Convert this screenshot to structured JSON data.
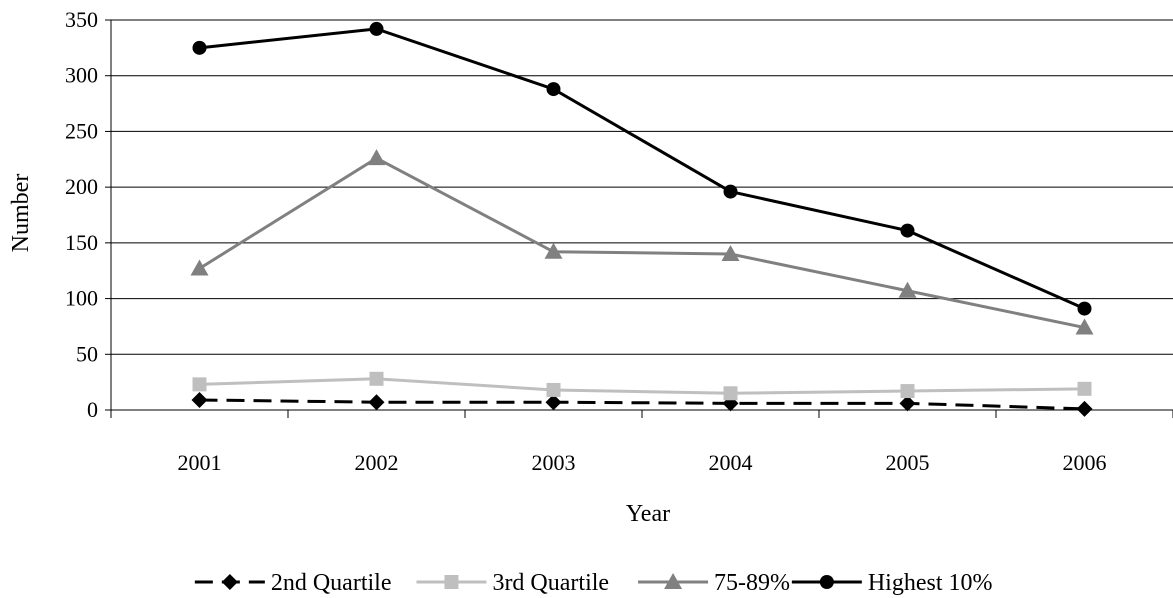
{
  "chart_data": {
    "type": "line",
    "title": "",
    "xlabel": "Year",
    "ylabel": "Number",
    "categories": [
      "2001",
      "2002",
      "2003",
      "2004",
      "2005",
      "2006"
    ],
    "ylim": [
      0,
      350
    ],
    "yticks": [
      0,
      50,
      100,
      150,
      200,
      250,
      300,
      350
    ],
    "grid": true,
    "legend_position": "bottom",
    "series": [
      {
        "name": "2nd Quartile",
        "values": [
          9,
          7,
          7,
          6,
          6,
          1
        ],
        "color": "#000000",
        "dash": "dashed",
        "marker": "diamond"
      },
      {
        "name": "3rd Quartile",
        "values": [
          23,
          28,
          18,
          15,
          17,
          19
        ],
        "color": "#bfbfbf",
        "dash": "solid",
        "marker": "square"
      },
      {
        "name": "75-89%",
        "values": [
          127,
          226,
          142,
          140,
          107,
          74
        ],
        "color": "#808080",
        "dash": "solid",
        "marker": "triangle"
      },
      {
        "name": "Highest 10%",
        "values": [
          325,
          342,
          288,
          196,
          161,
          91
        ],
        "color": "#000000",
        "dash": "solid",
        "marker": "circle"
      }
    ]
  }
}
